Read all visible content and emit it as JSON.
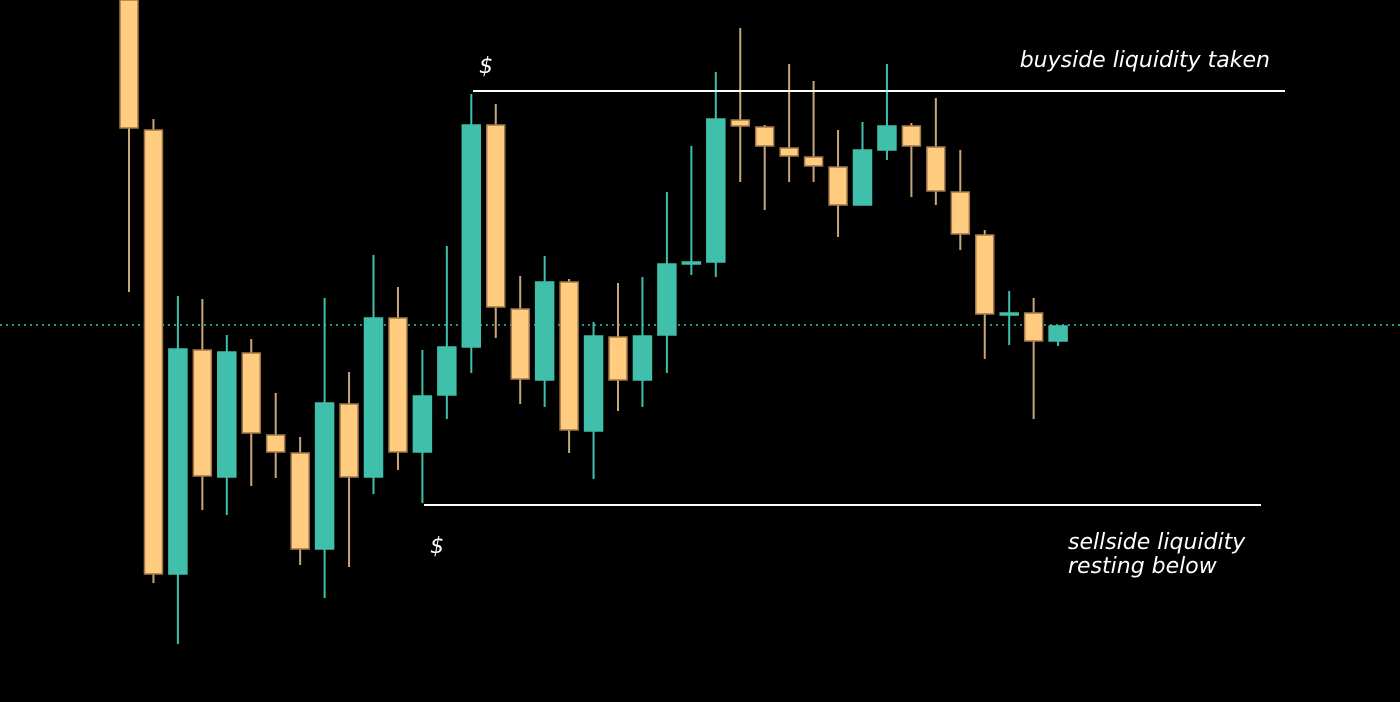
{
  "chart_data": {
    "type": "candlestick",
    "ylim": [
      0,
      702
    ],
    "up_color": "#40bfaa",
    "down_color": "#ffcc80",
    "open": [
      702,
      572,
      128,
      352,
      225,
      349,
      267,
      249,
      153,
      298,
      225,
      384,
      250,
      307,
      355,
      577,
      393,
      322,
      420,
      271,
      365,
      322,
      367,
      438,
      440,
      582,
      575,
      554,
      545,
      535,
      497,
      552,
      576,
      555,
      510,
      467,
      387,
      389,
      361
    ],
    "high": [
      702,
      583,
      406,
      403,
      367,
      363,
      309,
      265,
      404,
      330,
      447,
      415,
      352,
      456,
      608,
      598,
      426,
      446,
      423,
      380,
      419,
      425,
      510,
      556,
      630,
      674,
      577,
      638,
      621,
      572,
      580,
      638,
      579,
      604,
      552,
      472,
      411,
      404,
      377
    ],
    "low": [
      410,
      119,
      58,
      192,
      187,
      216,
      224,
      137,
      104,
      135,
      208,
      232,
      199,
      283,
      329,
      364,
      298,
      295,
      249,
      223,
      291,
      295,
      329,
      427,
      425,
      520,
      492,
      520,
      520,
      465,
      497,
      542,
      505,
      497,
      452,
      343,
      357,
      283,
      356
    ],
    "close": [
      574,
      128,
      353,
      226,
      350,
      269,
      250,
      153,
      299,
      225,
      384,
      250,
      306,
      355,
      577,
      395,
      323,
      420,
      272,
      366,
      322,
      366,
      438,
      440,
      583,
      576,
      556,
      546,
      536,
      497,
      552,
      576,
      556,
      511,
      468,
      388,
      389,
      361,
      376
    ],
    "levels": [
      {
        "value": 611,
        "color": "#ffffff",
        "label": "$",
        "text": [
          "buyside liquidity taken"
        ]
      },
      {
        "value": 197,
        "color": "#ffffff",
        "label": "$",
        "text": [
          "sellside liquidity",
          "resting below"
        ]
      }
    ],
    "reference_line": {
      "value": 377,
      "color": "#40bfaa"
    }
  }
}
